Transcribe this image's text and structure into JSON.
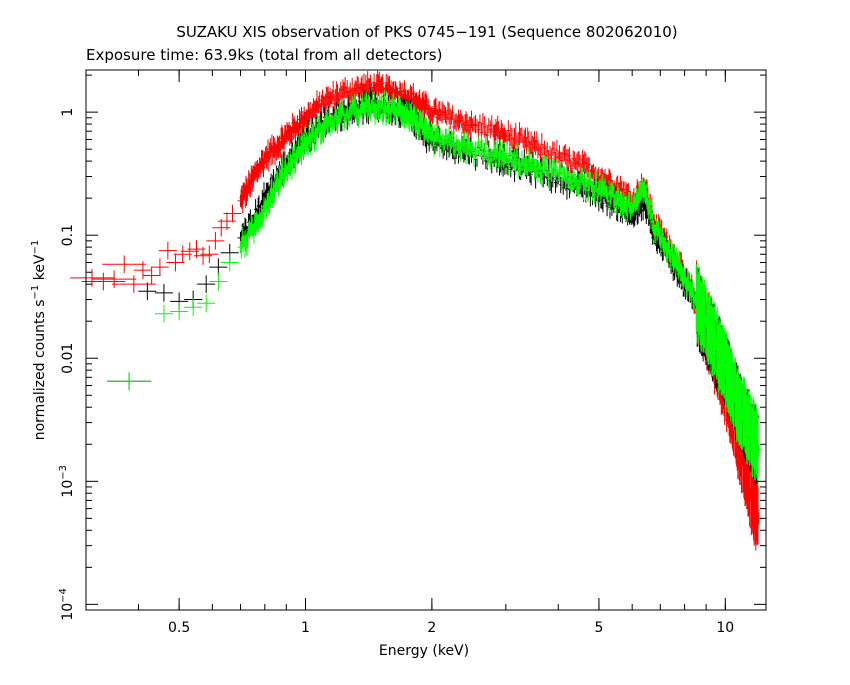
{
  "chart_data": {
    "type": "scatter",
    "title": "SUZAKU XIS observation of PKS 0745−191 (Sequence 802062010)",
    "subtitle": "Exposure time: 63.9ks (total from all detectors)",
    "xlabel": "Energy (keV)",
    "ylabel_main": "normalized counts s",
    "ylabel_sup1": "−1",
    "ylabel_mid": " keV",
    "ylabel_sup2": "−1",
    "xscale": "log",
    "yscale": "log",
    "xlim": [
      0.3,
      12.5
    ],
    "ylim": [
      9e-05,
      2.2
    ],
    "x_ticks": [
      {
        "value": 0.5,
        "label": "0.5"
      },
      {
        "value": 1,
        "label": "1"
      },
      {
        "value": 2,
        "label": "2"
      },
      {
        "value": 5,
        "label": "5"
      },
      {
        "value": 10,
        "label": "10"
      }
    ],
    "y_ticks": [
      {
        "value": 1,
        "label": "1",
        "sup": ""
      },
      {
        "value": 0.1,
        "label": "0.1",
        "sup": ""
      },
      {
        "value": 0.01,
        "label": "0.01",
        "sup": ""
      },
      {
        "value": 0.001,
        "label": "10",
        "sup": "−3"
      },
      {
        "value": 0.0001,
        "label": "10",
        "sup": "−4"
      }
    ],
    "grid": false,
    "legend": "none",
    "series": [
      {
        "color": "#ff0000",
        "points": [
          [
            0.31,
            0.045
          ],
          [
            0.33,
            0.042
          ],
          [
            0.35,
            0.044
          ],
          [
            0.37,
            0.058
          ],
          [
            0.39,
            0.04
          ],
          [
            0.41,
            0.052
          ],
          [
            0.43,
            0.047
          ],
          [
            0.45,
            0.055
          ],
          [
            0.47,
            0.075
          ],
          [
            0.49,
            0.06
          ],
          [
            0.51,
            0.07
          ],
          [
            0.53,
            0.074
          ],
          [
            0.55,
            0.077
          ],
          [
            0.57,
            0.068
          ],
          [
            0.59,
            0.07
          ],
          [
            0.61,
            0.09
          ],
          [
            0.63,
            0.115
          ],
          [
            0.65,
            0.13
          ],
          [
            0.67,
            0.15
          ],
          [
            0.7,
            0.19
          ],
          [
            0.73,
            0.24
          ],
          [
            0.76,
            0.32
          ],
          [
            0.8,
            0.42
          ],
          [
            0.85,
            0.52
          ],
          [
            0.9,
            0.64
          ],
          [
            0.95,
            0.76
          ],
          [
            1.0,
            0.9
          ],
          [
            1.07,
            1.1
          ],
          [
            1.15,
            1.3
          ],
          [
            1.25,
            1.45
          ],
          [
            1.35,
            1.55
          ],
          [
            1.45,
            1.58
          ],
          [
            1.55,
            1.52
          ],
          [
            1.65,
            1.45
          ],
          [
            1.75,
            1.35
          ],
          [
            1.85,
            1.2
          ],
          [
            1.95,
            1.05
          ],
          [
            2.1,
            0.95
          ],
          [
            2.3,
            0.85
          ],
          [
            2.5,
            0.78
          ],
          [
            2.8,
            0.7
          ],
          [
            3.0,
            0.64
          ],
          [
            3.3,
            0.57
          ],
          [
            3.6,
            0.5
          ],
          [
            4.0,
            0.43
          ],
          [
            4.4,
            0.38
          ],
          [
            4.8,
            0.33
          ],
          [
            5.2,
            0.28
          ],
          [
            5.6,
            0.24
          ],
          [
            6.0,
            0.19
          ],
          [
            6.4,
            0.26
          ],
          [
            6.8,
            0.12
          ],
          [
            7.2,
            0.09
          ],
          [
            7.6,
            0.065
          ],
          [
            8.0,
            0.045
          ],
          [
            8.5,
            0.03
          ],
          [
            9.0,
            0.018
          ],
          [
            9.5,
            0.01
          ],
          [
            10.0,
            0.006
          ],
          [
            10.5,
            0.003
          ],
          [
            11.0,
            0.0015
          ],
          [
            11.5,
            0.0008
          ],
          [
            12.0,
            0.0005
          ]
        ]
      },
      {
        "color": "#000000",
        "points": [
          [
            0.38,
            0.0065
          ],
          [
            0.42,
            0.035
          ],
          [
            0.46,
            0.034
          ],
          [
            0.5,
            0.029
          ],
          [
            0.54,
            0.03
          ],
          [
            0.58,
            0.04
          ],
          [
            0.62,
            0.055
          ],
          [
            0.66,
            0.072
          ],
          [
            0.7,
            0.095
          ],
          [
            0.75,
            0.13
          ],
          [
            0.8,
            0.2
          ],
          [
            0.85,
            0.28
          ],
          [
            0.9,
            0.38
          ],
          [
            0.95,
            0.48
          ],
          [
            1.0,
            0.6
          ],
          [
            1.07,
            0.74
          ],
          [
            1.15,
            0.88
          ],
          [
            1.25,
            1.0
          ],
          [
            1.35,
            1.08
          ],
          [
            1.45,
            1.12
          ],
          [
            1.55,
            1.1
          ],
          [
            1.65,
            1.05
          ],
          [
            1.75,
            0.98
          ],
          [
            1.85,
            0.8
          ],
          [
            1.95,
            0.62
          ],
          [
            2.1,
            0.56
          ],
          [
            2.3,
            0.52
          ],
          [
            2.5,
            0.48
          ],
          [
            2.8,
            0.43
          ],
          [
            3.0,
            0.4
          ],
          [
            3.3,
            0.36
          ],
          [
            3.6,
            0.33
          ],
          [
            4.0,
            0.29
          ],
          [
            4.4,
            0.26
          ],
          [
            4.8,
            0.23
          ],
          [
            5.2,
            0.2
          ],
          [
            5.6,
            0.17
          ],
          [
            6.0,
            0.14
          ],
          [
            6.4,
            0.18
          ],
          [
            6.8,
            0.095
          ],
          [
            7.2,
            0.075
          ],
          [
            7.6,
            0.055
          ],
          [
            8.0,
            0.04
          ],
          [
            8.5,
            0.028
          ],
          [
            9.0,
            0.018
          ],
          [
            9.5,
            0.012
          ],
          [
            10.0,
            0.008
          ],
          [
            10.5,
            0.005
          ],
          [
            11.0,
            0.0035
          ],
          [
            11.5,
            0.0025
          ],
          [
            12.0,
            0.0018
          ]
        ]
      },
      {
        "color": "#00ff00",
        "points": [
          [
            0.38,
            0.0065
          ],
          [
            0.46,
            0.023
          ],
          [
            0.5,
            0.024
          ],
          [
            0.54,
            0.026
          ],
          [
            0.58,
            0.028
          ],
          [
            0.62,
            0.042
          ],
          [
            0.66,
            0.06
          ],
          [
            0.7,
            0.08
          ],
          [
            0.75,
            0.11
          ],
          [
            0.8,
            0.17
          ],
          [
            0.85,
            0.25
          ],
          [
            0.9,
            0.34
          ],
          [
            0.95,
            0.44
          ],
          [
            1.0,
            0.56
          ],
          [
            1.07,
            0.7
          ],
          [
            1.15,
            0.84
          ],
          [
            1.25,
            0.96
          ],
          [
            1.35,
            1.04
          ],
          [
            1.45,
            1.08
          ],
          [
            1.55,
            1.08
          ],
          [
            1.65,
            1.04
          ],
          [
            1.75,
            0.98
          ],
          [
            1.85,
            0.82
          ],
          [
            1.95,
            0.64
          ],
          [
            2.1,
            0.58
          ],
          [
            2.3,
            0.54
          ],
          [
            2.5,
            0.5
          ],
          [
            2.8,
            0.45
          ],
          [
            3.0,
            0.42
          ],
          [
            3.3,
            0.38
          ],
          [
            3.6,
            0.35
          ],
          [
            4.0,
            0.31
          ],
          [
            4.4,
            0.28
          ],
          [
            4.8,
            0.25
          ],
          [
            5.2,
            0.22
          ],
          [
            5.6,
            0.19
          ],
          [
            6.0,
            0.16
          ],
          [
            6.4,
            0.25
          ],
          [
            6.8,
            0.11
          ],
          [
            7.2,
            0.085
          ],
          [
            7.6,
            0.062
          ],
          [
            8.0,
            0.045
          ],
          [
            8.5,
            0.03
          ],
          [
            9.0,
            0.02
          ],
          [
            9.5,
            0.013
          ],
          [
            10.0,
            0.008
          ],
          [
            10.5,
            0.005
          ],
          [
            11.0,
            0.0035
          ],
          [
            11.5,
            0.0025
          ],
          [
            12.0,
            0.0018
          ]
        ]
      }
    ]
  }
}
